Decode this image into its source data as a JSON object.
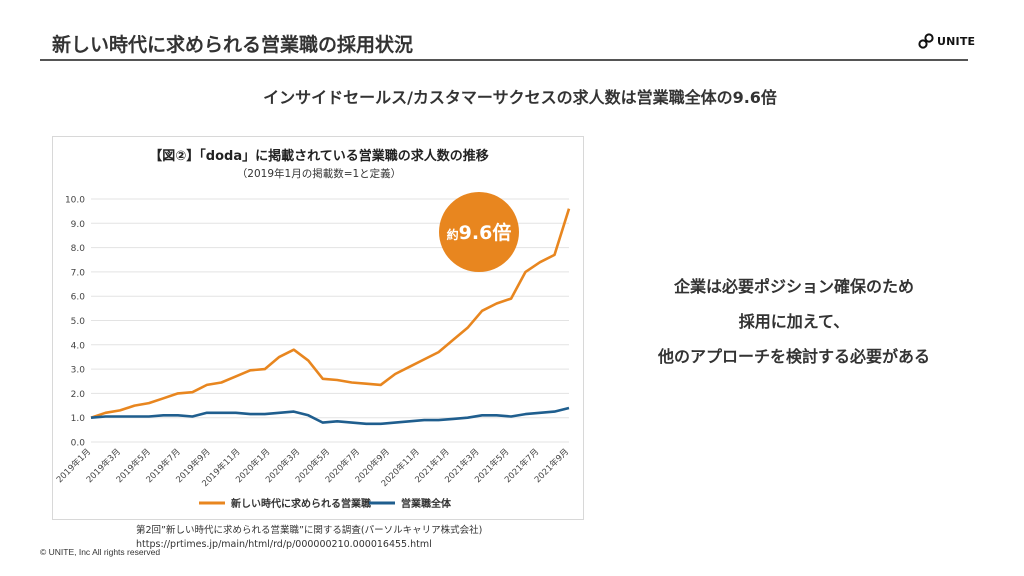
{
  "slide": {
    "title": "新しい時代に求められる営業職の採用状況",
    "headline": "インサイドセールス/カスタマーサクセスの求人数は営業職全体の9.6倍",
    "logo_text": "UNITE",
    "message_lines": [
      "企業は必要ポジション確保のため",
      "採用に加えて、",
      "他のアプローチを検討する必要がある"
    ],
    "source_line1": "第2回”新しい時代に求められる営業職”に関する調査(パーソルキャリア株式会社)",
    "source_line2": "https://prtimes.jp/main/html/rd/p/000000210.000016455.html",
    "copyright": "© UNITE, Inc All rights reserved"
  },
  "colors": {
    "orange": "#E8861F",
    "blue": "#1F5E8E",
    "grid": "#e3e3e3"
  },
  "chart_data": {
    "type": "line",
    "title": "【図②】「doda」に掲載されている営業職の求人数の推移",
    "subtitle": "（2019年1月の掲載数=1と定義）",
    "callout_prefix": "約",
    "callout_value": "9.6倍",
    "ylim": [
      0,
      10
    ],
    "yticks": [
      "0.0",
      "1.0",
      "2.0",
      "3.0",
      "4.0",
      "5.0",
      "6.0",
      "7.0",
      "8.0",
      "9.0",
      "10.0"
    ],
    "x_tick_labels": [
      "2019年1月",
      "2019年3月",
      "2019年5月",
      "2019年7月",
      "2019年9月",
      "2019年11月",
      "2020年1月",
      "2020年3月",
      "2020年5月",
      "2020年7月",
      "2020年9月",
      "2020年11月",
      "2021年1月",
      "2021年3月",
      "2021年5月",
      "2021年7月",
      "2021年9月"
    ],
    "series": [
      {
        "name": "新しい時代に求められる営業職",
        "color": "#E8861F",
        "values": [
          1.0,
          1.2,
          1.3,
          1.5,
          1.6,
          1.8,
          2.0,
          2.05,
          2.35,
          2.45,
          2.7,
          2.95,
          3.0,
          3.5,
          3.8,
          3.35,
          2.6,
          2.55,
          2.45,
          2.4,
          2.35,
          2.8,
          3.1,
          3.4,
          3.7,
          4.2,
          4.7,
          5.4,
          5.7,
          5.9,
          7.0,
          7.4,
          7.7,
          9.6
        ]
      },
      {
        "name": "営業職全体",
        "color": "#1F5E8E",
        "values": [
          1.0,
          1.05,
          1.05,
          1.05,
          1.05,
          1.1,
          1.1,
          1.05,
          1.2,
          1.2,
          1.2,
          1.15,
          1.15,
          1.2,
          1.25,
          1.1,
          0.8,
          0.85,
          0.8,
          0.75,
          0.75,
          0.8,
          0.85,
          0.9,
          0.9,
          0.95,
          1.0,
          1.1,
          1.1,
          1.05,
          1.15,
          1.2,
          1.25,
          1.4
        ]
      }
    ]
  }
}
